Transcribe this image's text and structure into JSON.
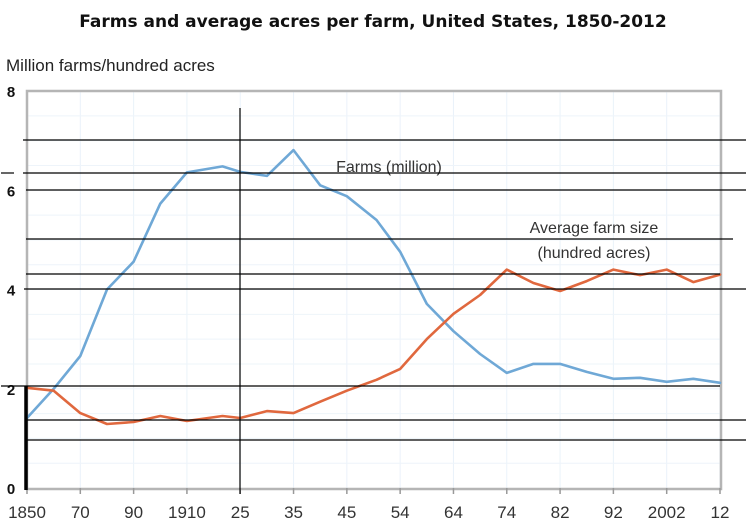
{
  "chart_data": {
    "type": "line",
    "title": "Farms and average acres per farm, United States, 1850-2012",
    "xlabel": "",
    "ylabel": "Million farms/hundred acres",
    "ylim": [
      0,
      8
    ],
    "yticks": [
      0,
      2,
      4,
      6,
      8
    ],
    "grid": true,
    "x_tick_labels": [
      "1850",
      "70",
      "90",
      "1910",
      "25",
      "35",
      "45",
      "54",
      "64",
      "74",
      "82",
      "92",
      "2002",
      "12"
    ],
    "x_tick_years": [
      1850,
      1870,
      1890,
      1910,
      1925,
      1935,
      1945,
      1954,
      1964,
      1974,
      1982,
      1992,
      2002,
      2012
    ],
    "x": [
      1850,
      1860,
      1870,
      1880,
      1890,
      1900,
      1910,
      1920,
      1925,
      1930,
      1935,
      1940,
      1945,
      1950,
      1954,
      1959,
      1964,
      1969,
      1974,
      1978,
      1982,
      1987,
      1992,
      1997,
      2002,
      2007,
      2012
    ],
    "series": [
      {
        "name": "Farms (million)",
        "color": "#6fa8d6",
        "values": [
          1.41,
          2.0,
          2.66,
          4.0,
          4.56,
          5.73,
          6.36,
          6.48,
          6.37,
          6.29,
          6.81,
          6.1,
          5.88,
          5.4,
          4.76,
          3.71,
          3.16,
          2.7,
          2.32,
          2.5,
          2.5,
          2.34,
          2.2,
          2.22,
          2.14,
          2.2,
          2.12
        ]
      },
      {
        "name": "Average farm size (hundred acres)",
        "label_lines": [
          "Average farm size",
          "(hundred acres)"
        ],
        "color": "#e0683e",
        "values": [
          2.02,
          1.96,
          1.51,
          1.29,
          1.33,
          1.45,
          1.35,
          1.45,
          1.41,
          1.55,
          1.51,
          1.74,
          1.96,
          2.18,
          2.4,
          3.0,
          3.51,
          3.89,
          4.4,
          4.13,
          3.97,
          4.17,
          4.4,
          4.29,
          4.4,
          4.15,
          4.3
        ]
      }
    ],
    "annotations": [
      "Farms (million)",
      "Average farm size",
      "(hundred acres)"
    ]
  }
}
